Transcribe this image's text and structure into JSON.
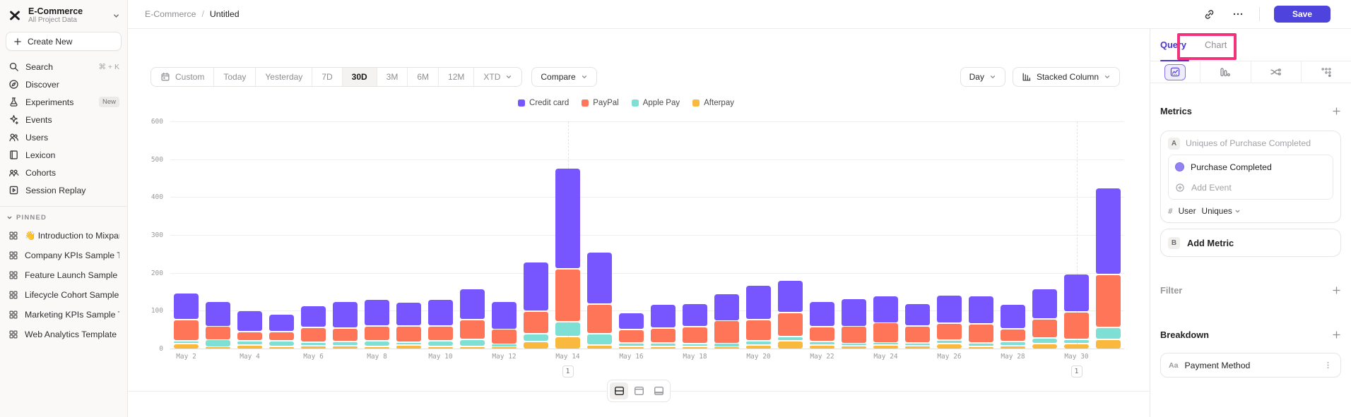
{
  "sidebar": {
    "project": {
      "name": "E-Commerce",
      "scope": "All Project Data"
    },
    "create_new_label": "Create New",
    "nav": [
      {
        "label": "Search",
        "icon": "search",
        "shortcut": "⌘ + K"
      },
      {
        "label": "Discover",
        "icon": "discover"
      },
      {
        "label": "Experiments",
        "icon": "experiments",
        "badge": "New"
      },
      {
        "label": "Events",
        "icon": "events"
      },
      {
        "label": "Users",
        "icon": "users"
      },
      {
        "label": "Lexicon",
        "icon": "lexicon"
      },
      {
        "label": "Cohorts",
        "icon": "cohorts"
      },
      {
        "label": "Session Replay",
        "icon": "session-replay"
      }
    ],
    "pinned_header": "PINNED",
    "pinned": [
      {
        "emoji": "👋",
        "label": "Introduction to Mixpanel Board"
      },
      {
        "label": "Company KPIs Sample Template"
      },
      {
        "label": "Feature Launch Sample Template"
      },
      {
        "label": "Lifecycle Cohort Sample Template"
      },
      {
        "label": "Marketing KPIs Sample Template"
      },
      {
        "label": "Web Analytics Template"
      }
    ]
  },
  "header": {
    "breadcrumb_root": "E-Commerce",
    "breadcrumb_current": "Untitled",
    "save_label": "Save"
  },
  "toolbar": {
    "date_ranges": [
      "Custom",
      "Today",
      "Yesterday",
      "7D",
      "30D",
      "3M",
      "6M",
      "12M",
      "XTD"
    ],
    "active_range": "30D",
    "compare_label": "Compare",
    "granularity_label": "Day",
    "chart_type_label": "Stacked Column"
  },
  "chart_data": {
    "type": "bar",
    "variant": "stacked-column",
    "x": [
      "May 2",
      "May 3",
      "May 4",
      "May 5",
      "May 6",
      "May 7",
      "May 8",
      "May 9",
      "May 10",
      "May 11",
      "May 12",
      "May 13",
      "May 14",
      "May 15",
      "May 16",
      "May 17",
      "May 18",
      "May 19",
      "May 20",
      "May 21",
      "May 22",
      "May 23",
      "May 24",
      "May 25",
      "May 26",
      "May 27",
      "May 28",
      "May 29",
      "May 30",
      "May 31"
    ],
    "tick_every": 2,
    "series": [
      {
        "name": "Afterpay",
        "color": "#F8B93E",
        "values": [
          15,
          6,
          12,
          8,
          10,
          10,
          8,
          12,
          7,
          8,
          5,
          20,
          33,
          12,
          8,
          8,
          8,
          5,
          12,
          22,
          12,
          10,
          12,
          10,
          15,
          8,
          10,
          15,
          15,
          26
        ]
      },
      {
        "name": "Apple Pay",
        "color": "#7EE0D4",
        "values": [
          8,
          18,
          12,
          14,
          10,
          12,
          15,
          8,
          15,
          18,
          8,
          20,
          40,
          30,
          10,
          10,
          8,
          10,
          12,
          12,
          10,
          5,
          6,
          8,
          10,
          10,
          12,
          15,
          12,
          31
        ]
      },
      {
        "name": "PayPal",
        "color": "#FF7557",
        "values": [
          55,
          36,
          24,
          24,
          40,
          35,
          40,
          42,
          40,
          52,
          40,
          60,
          140,
          78,
          35,
          40,
          45,
          60,
          55,
          63,
          40,
          45,
          52,
          45,
          45,
          50,
          33,
          50,
          73,
          139
        ]
      },
      {
        "name": "Credit card",
        "color": "#7856FF",
        "values": [
          70,
          65,
          55,
          46,
          58,
          71,
          70,
          63,
          71,
          82,
          72,
          130,
          267,
          138,
          44,
          63,
          61,
          71,
          91,
          85,
          68,
          72,
          70,
          59,
          75,
          75,
          66,
          81,
          100,
          229
        ]
      }
    ],
    "stack_order": "bottom-to-top",
    "legend_order": [
      "Credit card",
      "PayPal",
      "Apple Pay",
      "Afterpay"
    ],
    "ylim": [
      0,
      600
    ],
    "yticks": [
      0,
      100,
      200,
      300,
      400,
      500,
      600
    ],
    "grid": true,
    "legend_position": "top-center",
    "annotations": [
      {
        "x": "May 14",
        "label": "1"
      },
      {
        "x": "May 30",
        "label": "1"
      }
    ]
  },
  "query_panel": {
    "tabs": {
      "active": "Query",
      "idle": "Chart"
    },
    "highlight_color": "#F1337B",
    "metrics": {
      "title": "Metrics",
      "row_letter": "A",
      "row_summary": "Uniques of Purchase Completed",
      "event_name": "Purchase Completed",
      "add_event_label": "Add Event",
      "count_prefix": "#",
      "count_entity": "User",
      "count_type": "Uniques",
      "add_metric_letter": "B",
      "add_metric_label": "Add Metric"
    },
    "filter": {
      "title": "Filter"
    },
    "breakdown": {
      "title": "Breakdown",
      "item_prefix": "Aa",
      "item_label": "Payment Method"
    }
  },
  "colors": {
    "accent_purple": "#4E43DC",
    "tab_active": "#4634D9"
  }
}
